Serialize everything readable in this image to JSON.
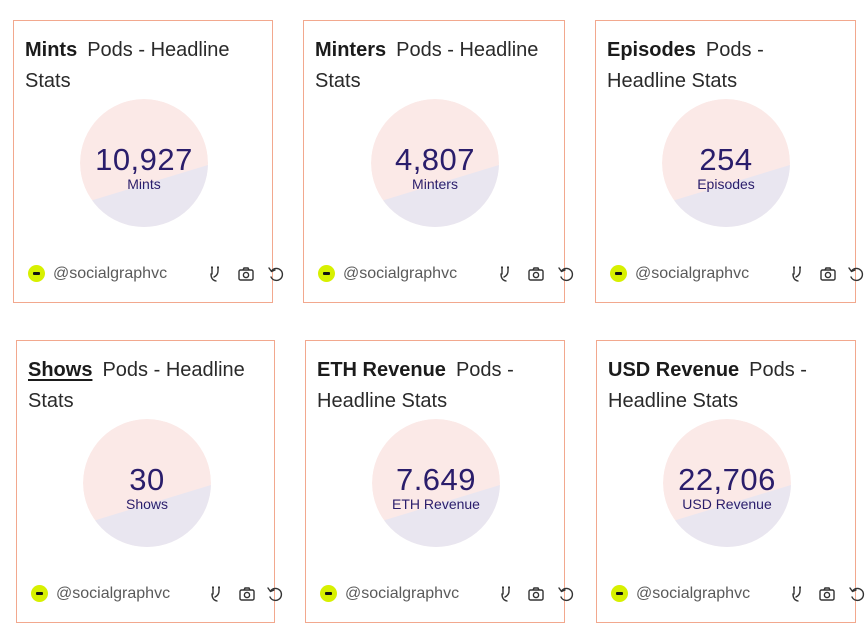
{
  "dashboard_name": "Pods - Headline Stats",
  "author_handle": "@socialgraphvc",
  "colors": {
    "card_border": "#f2a88e",
    "disc_pink": "#fbe9e7",
    "disc_lavender": "#e9e6f0",
    "value_text": "#2a1d6b",
    "avatar": "#d7f000"
  },
  "icons": [
    "avatar-icon",
    "branch-icon",
    "camera-icon",
    "refresh-icon"
  ],
  "cards": [
    {
      "metric": "Mints",
      "value": "10,927",
      "label": "Mints"
    },
    {
      "metric": "Minters",
      "value": "4,807",
      "label": "Minters"
    },
    {
      "metric": "Episodes",
      "value": "254",
      "label": "Episodes"
    },
    {
      "metric": "Shows",
      "value": "30",
      "label": "Shows"
    },
    {
      "metric": "ETH Revenue",
      "value": "7.649",
      "label": "ETH Revenue"
    },
    {
      "metric": "USD Revenue",
      "value": "22,706",
      "label": "USD Revenue"
    }
  ]
}
